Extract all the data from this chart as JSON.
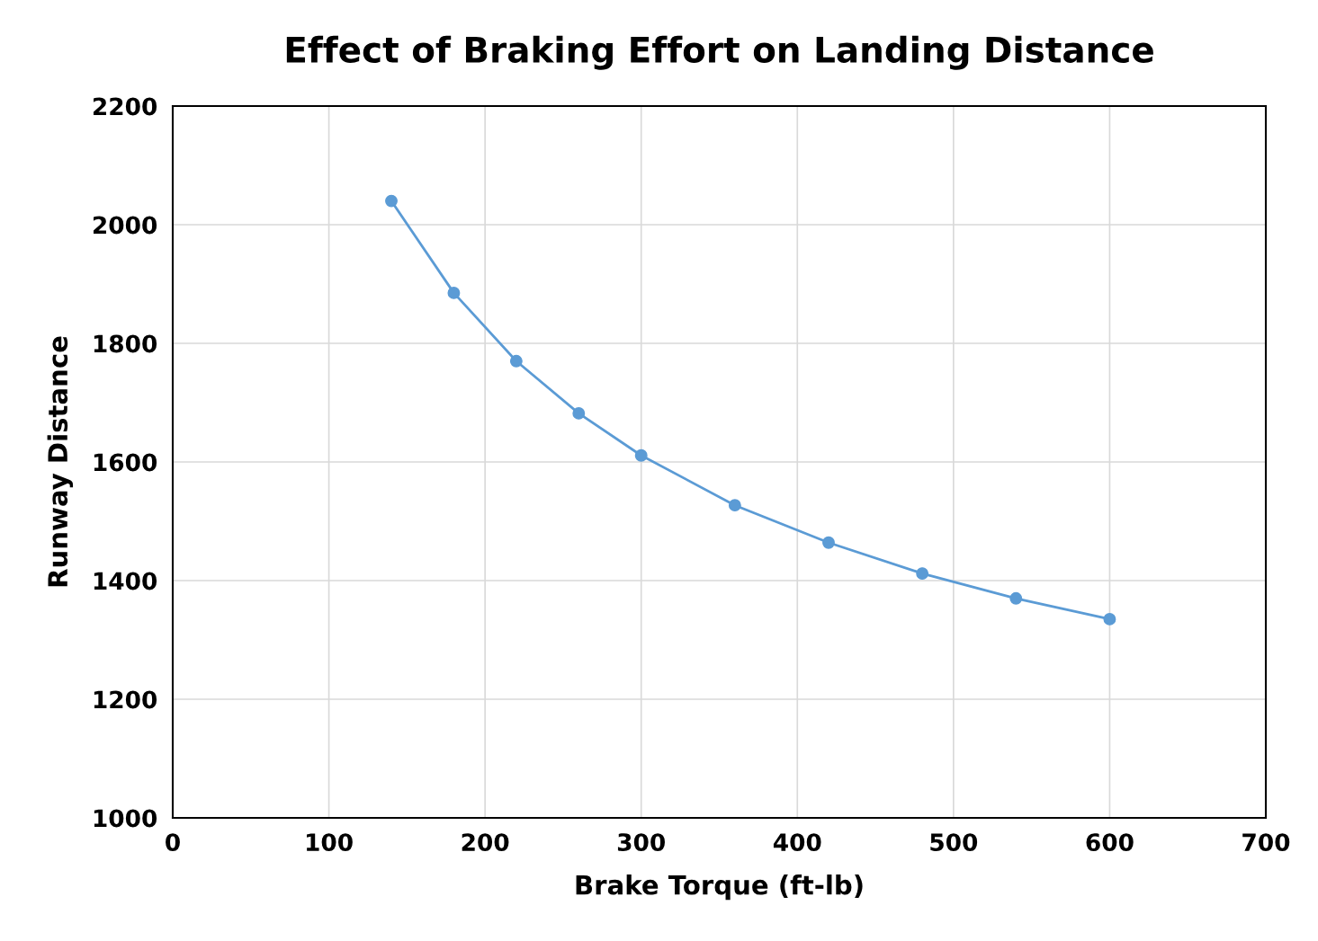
{
  "chart_data": {
    "type": "line",
    "title": "Effect of Braking Effort on Landing Distance",
    "xlabel": "Brake Torque (ft-lb)",
    "ylabel": "Runway Distance",
    "x": [
      140,
      180,
      220,
      260,
      300,
      360,
      420,
      480,
      540,
      600
    ],
    "series": [
      {
        "color": "#5b9bd5",
        "values": [
          2040,
          1885,
          1770,
          1682,
          1611,
          1527,
          1464,
          1412,
          1370,
          1335
        ]
      }
    ],
    "xlim": [
      0,
      700
    ],
    "xticks": [
      0,
      100,
      200,
      300,
      400,
      500,
      600,
      700
    ],
    "ylim": [
      1000,
      2200
    ],
    "yticks": [
      1000,
      1200,
      1400,
      1600,
      1800,
      2000,
      2200
    ],
    "grid": true,
    "marker": "circle",
    "line_style": "solid"
  }
}
